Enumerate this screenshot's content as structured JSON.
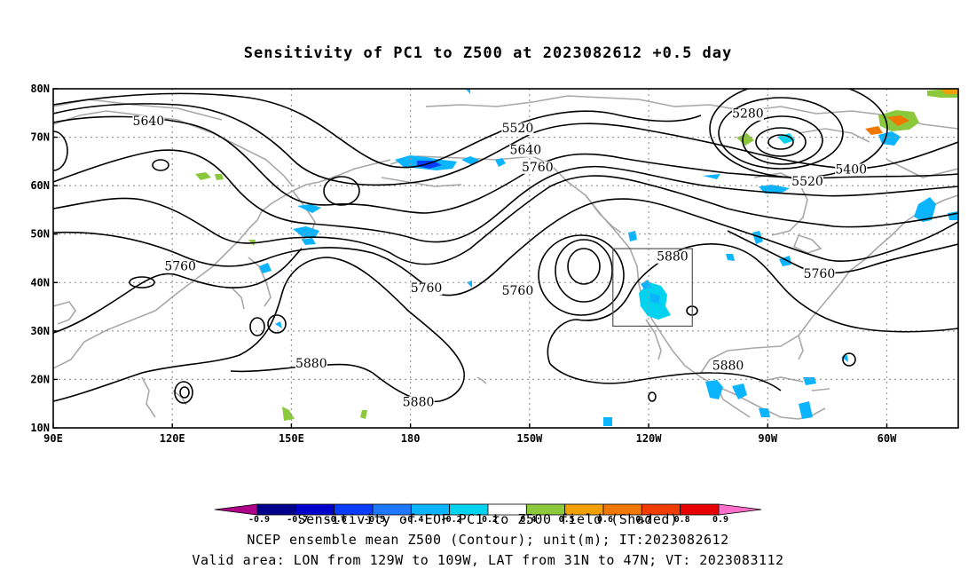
{
  "title": "Sensitivity of PC1 to Z500 at 2023082612 +0.5 day",
  "axes": {
    "lat_labels": [
      "80N",
      "70N",
      "60N",
      "50N",
      "40N",
      "30N",
      "20N",
      "10N"
    ],
    "lon_labels": [
      "90E",
      "120E",
      "150E",
      "180",
      "150W",
      "120W",
      "90W",
      "60W"
    ]
  },
  "contour_labels": [
    {
      "text": "5640",
      "lon": 114,
      "lat": 72.5
    },
    {
      "text": "5520",
      "lon": 207,
      "lat": 71
    },
    {
      "text": "5640",
      "lon": 209,
      "lat": 66.5
    },
    {
      "text": "5760",
      "lon": 212,
      "lat": 63
    },
    {
      "text": "5280",
      "lon": 265,
      "lat": 74
    },
    {
      "text": "5400",
      "lon": 291,
      "lat": 62.5
    },
    {
      "text": "5520",
      "lon": 280,
      "lat": 60
    },
    {
      "text": "5760",
      "lon": 122,
      "lat": 42.5
    },
    {
      "text": "5760",
      "lon": 184,
      "lat": 38
    },
    {
      "text": "5760",
      "lon": 207,
      "lat": 37.5
    },
    {
      "text": "5880",
      "lon": 246,
      "lat": 44.5
    },
    {
      "text": "5760",
      "lon": 283,
      "lat": 41
    },
    {
      "text": "5880",
      "lon": 155,
      "lat": 22.5
    },
    {
      "text": "5880",
      "lon": 182,
      "lat": 14.5
    },
    {
      "text": "5880",
      "lon": 260,
      "lat": 22
    }
  ],
  "valid_box": {
    "lon_min": 231,
    "lon_max": 251,
    "lat_min": 31,
    "lat_max": 47
  },
  "colorbar": {
    "ticks": [
      "-0.9",
      "-0.7",
      "-0.6",
      "-0.5",
      "-0.4",
      "-0.2",
      "0.2",
      "0.4",
      "0.5",
      "0.6",
      "0.7",
      "0.8",
      "0.9"
    ],
    "colors": [
      "#b0008a",
      "#00008c",
      "#0000cd",
      "#0a3cff",
      "#1e78ff",
      "#0ab4ff",
      "#00d2f0",
      "#ffffff",
      "#8cc83c",
      "#f0a000",
      "#f07800",
      "#f03c00",
      "#e60000",
      "#ff6ec8"
    ]
  },
  "footer": {
    "line1": "Sensitivity of EOF PC1 to Z500 field (Shaded)",
    "line2": "NCEP ensemble mean Z500 (Contour); unit(m); IT:2023082612",
    "line3": "Valid area: LON from 129W to 109W, LAT from 31N to 47N; VT: 2023083112"
  }
}
